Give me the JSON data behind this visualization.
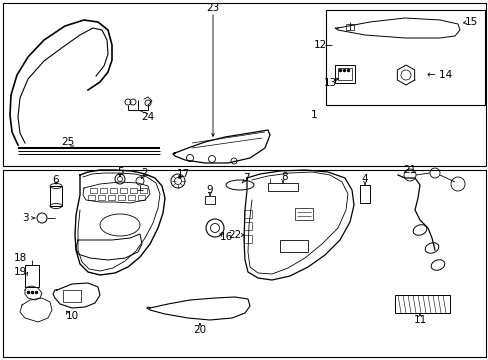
{
  "bg_color": "#ffffff",
  "line_color": "#000000",
  "label_fontsize": 7.5,
  "fig_width": 4.89,
  "fig_height": 3.6,
  "dpi": 100
}
